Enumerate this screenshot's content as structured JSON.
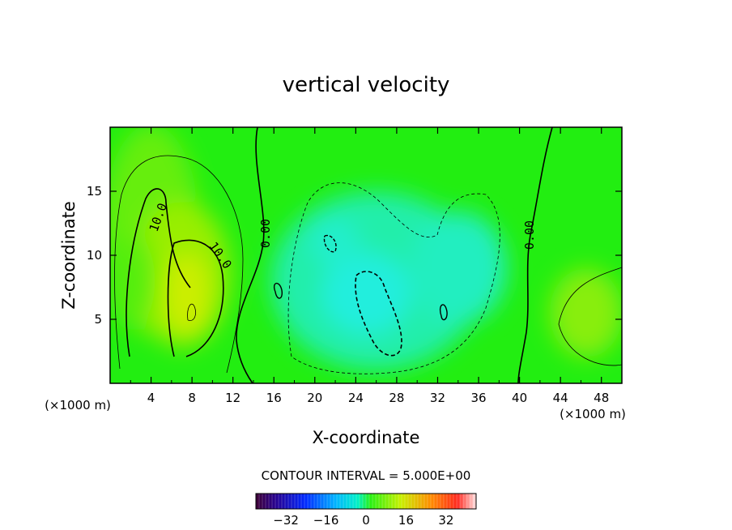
{
  "chart_data": {
    "type": "heatmap",
    "title": "vertical velocity",
    "xlabel": "X-coordinate",
    "ylabel": "Z-coordinate",
    "x_unit": "(×1000 m)",
    "y_unit": "(×1000 m)",
    "xlim": [
      0,
      50
    ],
    "ylim": [
      0,
      20
    ],
    "x_ticks": [
      4,
      8,
      12,
      16,
      20,
      24,
      28,
      32,
      36,
      40,
      44,
      48
    ],
    "y_ticks": [
      5,
      10,
      15
    ],
    "contour_interval_label": "CONTOUR INTERVAL = 5.000E+00",
    "contour_labels": [
      "10.0",
      "10.0",
      "0.00",
      "0.00"
    ],
    "colorbar": {
      "range": [
        -44,
        44
      ],
      "tick_values": [
        -32,
        -16,
        0,
        16,
        32
      ]
    },
    "features": [
      {
        "kind": "updraft",
        "x": 7.5,
        "z": 7.0,
        "value": 15
      },
      {
        "kind": "updraft",
        "x": 4.5,
        "z": 12.0,
        "value": 10
      },
      {
        "kind": "downdraft",
        "x": 26,
        "z": 7,
        "value": -12
      },
      {
        "kind": "downdraft",
        "x": 22,
        "z": 11,
        "value": -9
      },
      {
        "kind": "downdraft",
        "x": 34,
        "z": 9,
        "value": -7
      },
      {
        "kind": "updraft",
        "x": 46.5,
        "z": 5.5,
        "value": 6
      }
    ]
  },
  "colors": {
    "background_field": "#22ee11",
    "updraft": "#ccee00",
    "downdraft": "#22eedd"
  }
}
